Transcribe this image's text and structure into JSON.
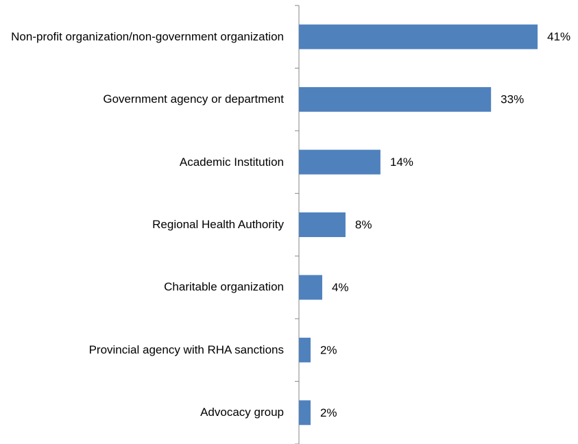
{
  "chart_data": {
    "type": "bar",
    "orientation": "horizontal",
    "categories": [
      "Non-profit organization/non-government organization",
      "Government agency or department",
      "Academic Institution",
      "Regional Health Authority",
      "Charitable organization",
      "Provincial agency with RHA sanctions",
      "Advocacy group"
    ],
    "values": [
      41,
      33,
      14,
      8,
      4,
      2,
      2
    ],
    "value_labels": [
      "41%",
      "33%",
      "14%",
      "8%",
      "4%",
      "2%",
      "2%"
    ],
    "color": "#4f81bd"
  }
}
